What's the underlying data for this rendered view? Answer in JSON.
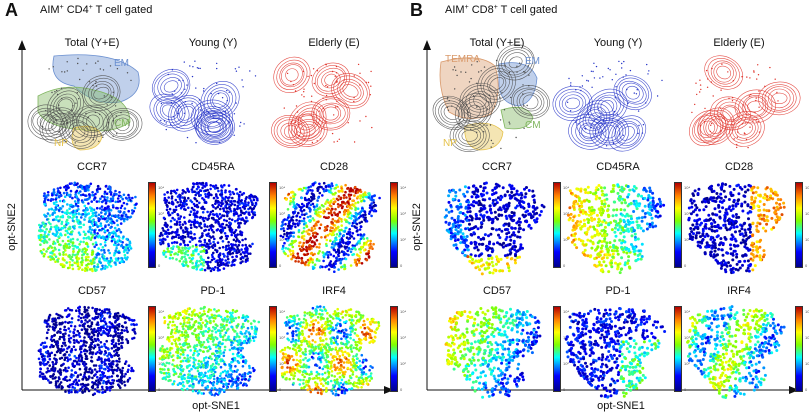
{
  "figure": {
    "panels": [
      {
        "letter": "A",
        "title_prefix": "AIM",
        "title_sup1": "+",
        "title_middle": " CD4",
        "title_sup2": "+",
        "title_suffix": " T cell gated",
        "y_axis": "opt-SNE2",
        "x_axis": "opt-SNE1",
        "rows": [
          [
            "Total (Y+E)",
            "Young (Y)",
            "Elderly (E)"
          ],
          [
            "CCR7",
            "CD45RA",
            "CD28"
          ],
          [
            "CD57",
            "PD-1",
            "IRF4"
          ]
        ],
        "clusters": [
          "EM",
          "CM",
          "NP"
        ]
      },
      {
        "letter": "B",
        "title_prefix": "AIM",
        "title_sup1": "+",
        "title_middle": " CD8",
        "title_sup2": "+",
        "title_suffix": " T cell gated",
        "y_axis": "opt-SNE2",
        "x_axis": "opt-SNE1",
        "rows": [
          [
            "Total (Y+E)",
            "Young (Y)",
            "Elderly (E)"
          ],
          [
            "CCR7",
            "CD45RA",
            "CD28"
          ],
          [
            "CD57",
            "PD-1",
            "IRF4"
          ]
        ],
        "clusters": [
          "TEMRA",
          "EM",
          "CM",
          "NP"
        ]
      }
    ],
    "colors": {
      "young": "#2433c8",
      "elderly": "#e0332a",
      "em": "#6a8fd0",
      "cm": "#7fb55e",
      "np": "#e5c24a",
      "temra": "#d99a6c"
    },
    "colorbar_ticks": [
      "10⁴",
      "10³",
      "10²",
      "0"
    ]
  }
}
